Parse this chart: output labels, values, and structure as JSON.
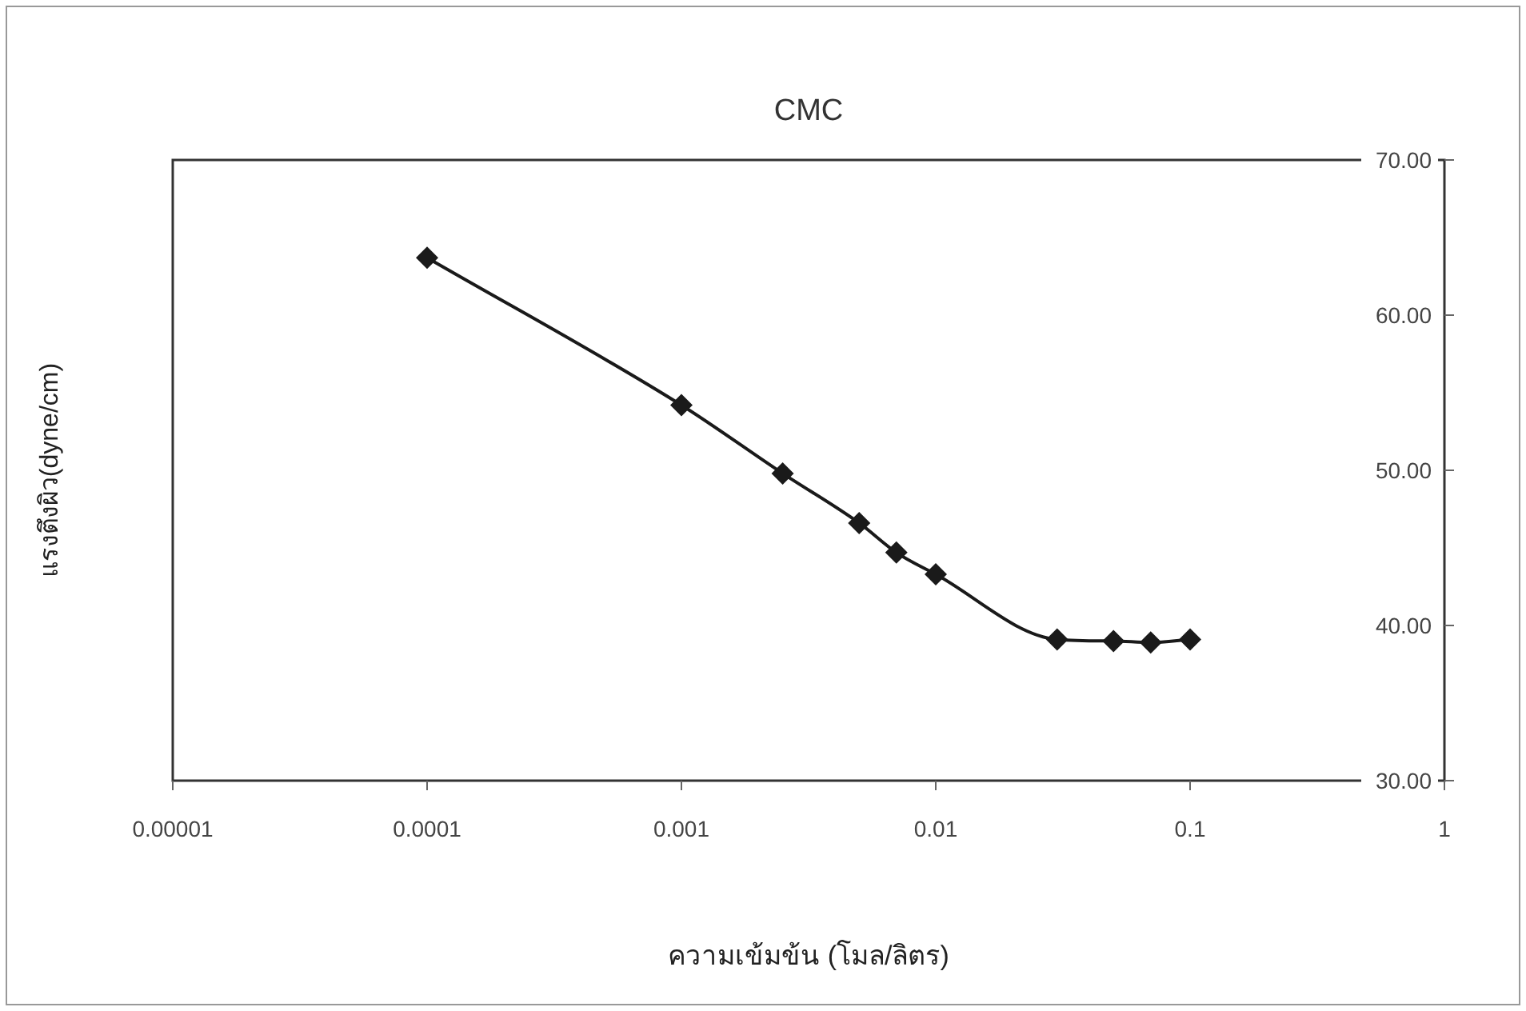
{
  "chart_data": {
    "type": "line",
    "title": "CMC",
    "xlabel": "ความเข้มข้น (โมล/ลิตร)",
    "ylabel": "แรงตึงผิว(dyne/cm)",
    "log": "x",
    "xlim": [
      1e-05,
      1
    ],
    "xticks": [
      {
        "value": 1e-05,
        "label": "0.00001"
      },
      0.0001,
      0.001,
      0.01,
      0.1,
      1
    ],
    "ylim": [
      30,
      70
    ],
    "yticks": [
      {
        "value": 30,
        "label": "30.00"
      },
      {
        "value": 40,
        "label": "40.00"
      },
      {
        "value": 50,
        "label": "50.00"
      },
      {
        "value": 60,
        "label": "60.00"
      },
      {
        "value": 70,
        "label": "70.00"
      }
    ],
    "x": [
      0.0001,
      0.001,
      0.0025,
      0.005,
      0.007,
      0.01,
      0.03,
      0.05,
      0.07,
      0.1
    ],
    "values": [
      63.7,
      54.2,
      49.8,
      46.6,
      44.7,
      43.3,
      39.1,
      39.0,
      38.9,
      39.1
    ],
    "color": "#1a1a1a",
    "marker": "diamond",
    "line_style": "solid",
    "grid": false
  }
}
